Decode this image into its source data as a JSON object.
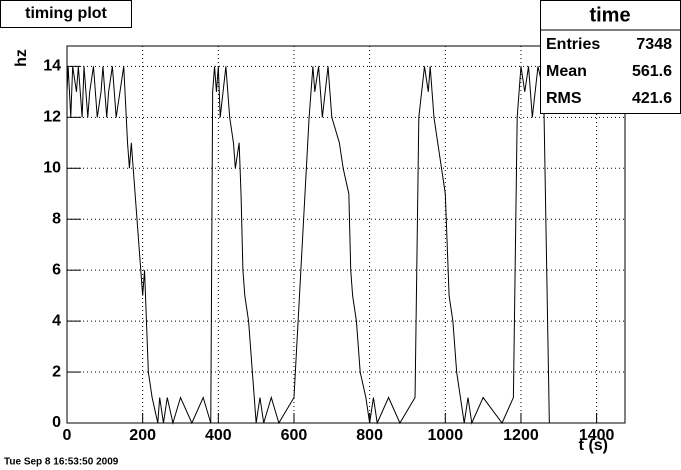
{
  "chart_data": {
    "type": "line",
    "title": "timing plot",
    "xlabel": "t (s)",
    "ylabel": "hz",
    "footer": "Tue Sep  8 16:53:50 2009",
    "stats": {
      "title": "time",
      "rows": [
        {
          "label": "Entries",
          "value": "7348"
        },
        {
          "label": "Mean",
          "value": "561.6"
        },
        {
          "label": "RMS",
          "value": "421.6"
        }
      ]
    },
    "xlim": [
      0,
      1475
    ],
    "ylim": [
      0,
      14.8
    ],
    "xticks": [
      0,
      200,
      400,
      600,
      800,
      1000,
      1200,
      1400
    ],
    "yticks": [
      0,
      2,
      4,
      6,
      8,
      10,
      12,
      14
    ],
    "grid": true,
    "x": [
      0,
      3,
      10,
      15,
      25,
      30,
      40,
      45,
      55,
      60,
      70,
      80,
      90,
      95,
      105,
      110,
      120,
      130,
      140,
      150,
      160,
      165,
      170,
      175,
      180,
      185,
      190,
      195,
      200,
      205,
      210,
      215,
      225,
      240,
      245,
      255,
      265,
      280,
      300,
      330,
      360,
      380,
      385,
      390,
      395,
      400,
      405,
      420,
      430,
      440,
      445,
      455,
      460,
      465,
      470,
      480,
      490,
      495,
      500,
      510,
      520,
      540,
      560,
      600,
      640,
      650,
      655,
      665,
      675,
      690,
      700,
      720,
      730,
      745,
      750,
      755,
      765,
      775,
      790,
      800,
      810,
      820,
      850,
      880,
      920,
      930,
      945,
      955,
      960,
      970,
      980,
      990,
      1000,
      1010,
      1020,
      1030,
      1040,
      1050,
      1060,
      1070,
      1100,
      1150,
      1180,
      1190,
      1200,
      1210,
      1220,
      1230,
      1245,
      1260,
      1275
    ],
    "series": [
      {
        "name": "time",
        "color": "#000000",
        "values": [
          13,
          14,
          12,
          14,
          13,
          14,
          12,
          14,
          12,
          13,
          14,
          12,
          13,
          14,
          12,
          13,
          14,
          12,
          13,
          14,
          11,
          10,
          11,
          10,
          9,
          8,
          7,
          6,
          5,
          6,
          4,
          2,
          1,
          0,
          1,
          0,
          1,
          0,
          1,
          0,
          1,
          0,
          13,
          14,
          13,
          14,
          12,
          14,
          12,
          11,
          10,
          11,
          9,
          6,
          5,
          4,
          2,
          1,
          0,
          1,
          0,
          1,
          0,
          1,
          12,
          14,
          13,
          14,
          12,
          14,
          12,
          11,
          10,
          9,
          6,
          5,
          4,
          2,
          1,
          0,
          1,
          0,
          1,
          0,
          1,
          12,
          14,
          13,
          14,
          12,
          11,
          10,
          9,
          5,
          4,
          2,
          1,
          0,
          1,
          0,
          1,
          0,
          1,
          12,
          14,
          13,
          14,
          12,
          14,
          13,
          0
        ]
      }
    ]
  }
}
